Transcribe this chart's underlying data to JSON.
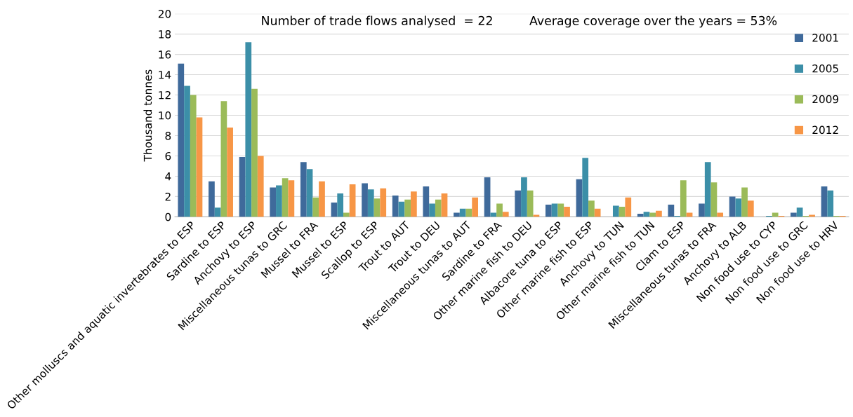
{
  "chart_data": {
    "type": "bar",
    "ylabel": "Thousand tonnes",
    "annotations": [
      "Number of trade flows analysed  = 22",
      "Average coverage over the years = 53%"
    ],
    "categories": [
      "Other molluscs and aquatic invertebrates to ESP",
      "Sardine to ESP",
      "Anchovy to ESP",
      "Miscellaneous tunas to GRC",
      "Mussel to FRA",
      "Mussel to ESP",
      "Scallop to ESP",
      "Trout to AUT",
      "Trout to DEU",
      "Miscellaneous tunas to AUT",
      "Sardine to FRA",
      "Other marine fish to DEU",
      "Albacore tuna to ESP",
      "Other marine fish to ESP",
      "Anchovy to TUN",
      "Other marine fish to TUN",
      "Clam to ESP",
      "Miscellaneous tunas to FRA",
      "Anchovy to ALB",
      "Non food use to CYP",
      "Non food use to GRC",
      "Non food use to HRV"
    ],
    "series": [
      {
        "name": "2001",
        "color": "#3f6a9b",
        "values": [
          15.1,
          3.5,
          5.9,
          2.9,
          5.4,
          1.4,
          3.3,
          2.1,
          3.0,
          0.4,
          3.9,
          2.6,
          1.2,
          3.7,
          null,
          0.3,
          1.2,
          1.3,
          2.0,
          null,
          0.4,
          3.0
        ]
      },
      {
        "name": "2005",
        "color": "#3c8fa8",
        "values": [
          12.9,
          0.9,
          17.2,
          3.1,
          4.7,
          2.3,
          2.7,
          1.5,
          1.3,
          0.8,
          0.4,
          3.9,
          1.3,
          5.8,
          1.1,
          0.5,
          0.1,
          5.4,
          1.8,
          0.1,
          0.9,
          2.6
        ]
      },
      {
        "name": "2009",
        "color": "#9bbb59",
        "values": [
          12.0,
          11.4,
          12.6,
          3.8,
          1.9,
          0.4,
          1.8,
          1.7,
          1.7,
          0.8,
          1.3,
          2.6,
          1.3,
          1.6,
          1.0,
          0.4,
          3.6,
          3.4,
          2.9,
          0.4,
          0.1,
          0.1
        ]
      },
      {
        "name": "2012",
        "color": "#f79646",
        "values": [
          9.8,
          8.8,
          6.0,
          3.6,
          3.5,
          3.2,
          2.8,
          2.5,
          2.3,
          1.9,
          0.5,
          0.2,
          1.0,
          0.8,
          1.9,
          0.6,
          0.4,
          0.4,
          1.6,
          0.1,
          0.2,
          0.1
        ]
      }
    ],
    "ylim": [
      0,
      20
    ],
    "yticks": [
      0,
      2,
      4,
      6,
      8,
      10,
      12,
      14,
      16,
      18,
      20
    ],
    "grid": "y",
    "legend": "top right"
  }
}
